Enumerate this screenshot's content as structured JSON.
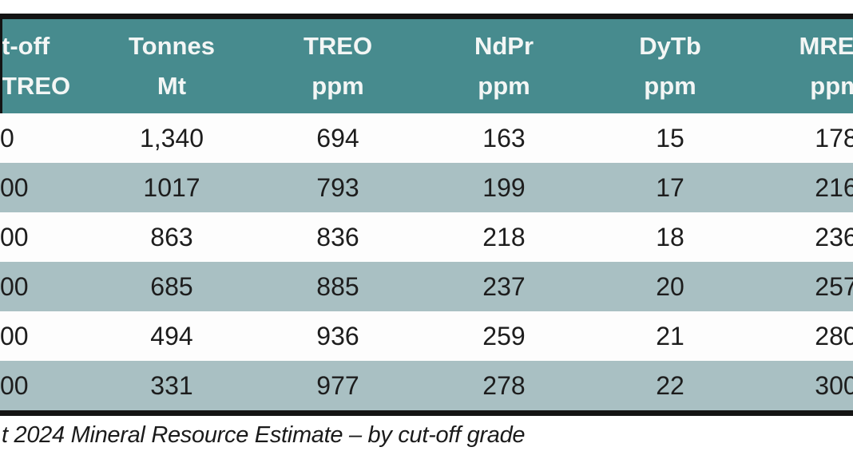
{
  "colors": {
    "header_bg": "#478b8e",
    "band_bg": "#a9c0c3",
    "row_bg": "#fdfdfd",
    "border": "#141414",
    "header_text": "#f3f6f5",
    "body_text": "#1d1d1d"
  },
  "header": {
    "col1": {
      "line1": "t-off",
      "line2": "TREO"
    },
    "col2": {
      "line1": "Tonnes",
      "line2": "Mt"
    },
    "col3": {
      "line1": "TREO",
      "line2": "ppm"
    },
    "col4": {
      "line1": "NdPr",
      "line2": "ppm"
    },
    "col5": {
      "line1": "DyTb",
      "line2": "ppm"
    },
    "col6": {
      "line1": "MREO",
      "line2": "ppm"
    }
  },
  "rows": [
    {
      "cutoff": "0",
      "tonnes": "1,340",
      "treo": "694",
      "ndpr": "163",
      "dytb": "15",
      "mreo": "178"
    },
    {
      "cutoff": "00",
      "tonnes": "1017",
      "treo": "793",
      "ndpr": "199",
      "dytb": "17",
      "mreo": "216"
    },
    {
      "cutoff": "00",
      "tonnes": "863",
      "treo": "836",
      "ndpr": "218",
      "dytb": "18",
      "mreo": "236"
    },
    {
      "cutoff": "00",
      "tonnes": "685",
      "treo": "885",
      "ndpr": "237",
      "dytb": "20",
      "mreo": "257"
    },
    {
      "cutoff": "00",
      "tonnes": "494",
      "treo": "936",
      "ndpr": "259",
      "dytb": "21",
      "mreo": "280"
    },
    {
      "cutoff": "00",
      "tonnes": "331",
      "treo": "977",
      "ndpr": "278",
      "dytb": "22",
      "mreo": "300"
    }
  ],
  "caption": "t 2024 Mineral Resource Estimate – by cut-off grade"
}
